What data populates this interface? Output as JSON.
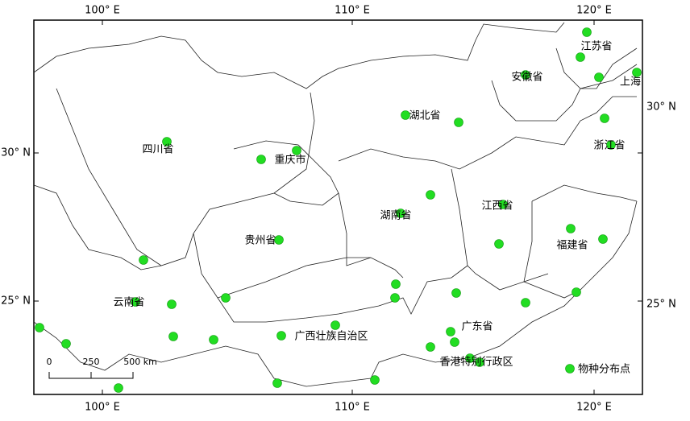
{
  "map": {
    "top_labels": [
      "100° E",
      "110° E",
      "120° E"
    ],
    "bottom_labels": [
      "100° E",
      "110° E",
      "120° E"
    ],
    "left_labels": [
      "30° N",
      "25° N"
    ],
    "right_labels": [
      "30° N",
      "25° N"
    ],
    "regions": [
      "四川省",
      "重庆市",
      "湖北省",
      "安徽省",
      "江苏省",
      "上海",
      "浙江省",
      "江西省",
      "湖南省",
      "贵州省",
      "云南省",
      "广西壮族自治区",
      "广东省",
      "福建省",
      "香港特别行政区"
    ],
    "scale_bar": [
      "0",
      "250",
      "500 km"
    ],
    "legend": "物种分布点"
  }
}
